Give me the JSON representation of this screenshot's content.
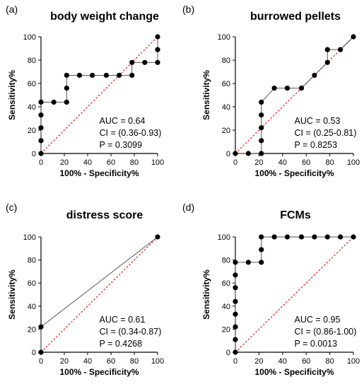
{
  "chart_data": [
    {
      "type": "line",
      "panel": "(a)",
      "title": "body weight change",
      "xlabel": "100% - Specificity%",
      "ylabel": "Sensitivity%",
      "xlim": [
        0,
        100
      ],
      "ylim": [
        0,
        100
      ],
      "xticks": [
        "0",
        "20",
        "40",
        "60",
        "80",
        "100"
      ],
      "yticks": [
        "0",
        "20",
        "40",
        "60",
        "80",
        "100"
      ],
      "stats": [
        "AUC = 0.64",
        "CI = (0.36-0.93)",
        "P = 0.3099"
      ],
      "series": [
        {
          "x": [
            0,
            0,
            0,
            0,
            0,
            11,
            22,
            22,
            22,
            33,
            44,
            56,
            67,
            78,
            78,
            89,
            100,
            100,
            100
          ],
          "y": [
            0,
            11,
            22,
            33,
            44,
            44,
            44,
            56,
            67,
            67,
            67,
            67,
            67,
            67,
            78,
            78,
            78,
            89,
            100
          ]
        }
      ],
      "reference_line": true
    },
    {
      "type": "line",
      "panel": "(b)",
      "title": "burrowed pellets",
      "xlabel": "100% - Specificity%",
      "ylabel": "Sensitivity%",
      "xlim": [
        0,
        100
      ],
      "ylim": [
        0,
        100
      ],
      "xticks": [
        "0",
        "20",
        "40",
        "60",
        "80",
        "100"
      ],
      "yticks": [
        "0",
        "20",
        "40",
        "60",
        "80",
        "100"
      ],
      "stats": [
        "AUC = 0.53",
        "CI = (0.25-0.81)",
        "P = 0.8253"
      ],
      "series": [
        {
          "x": [
            0,
            11,
            22,
            22,
            22,
            22,
            22,
            33,
            44,
            56,
            67,
            78,
            78,
            89,
            100
          ],
          "y": [
            0,
            0,
            0,
            11,
            22,
            33,
            44,
            56,
            56,
            56,
            67,
            78,
            89,
            89,
            100
          ]
        }
      ],
      "reference_line": true
    },
    {
      "type": "line",
      "panel": "(c)",
      "title": "distress score",
      "xlabel": "100% - Specificity%",
      "ylabel": "Sensitivity%",
      "xlim": [
        0,
        100
      ],
      "ylim": [
        0,
        100
      ],
      "xticks": [
        "0",
        "20",
        "40",
        "60",
        "80",
        "100"
      ],
      "yticks": [
        "0",
        "20",
        "40",
        "60",
        "80",
        "100"
      ],
      "stats": [
        "AUC = 0.61",
        "CI = (0.34-0.87)",
        "P = 0.4268"
      ],
      "series": [
        {
          "x": [
            0,
            0,
            100
          ],
          "y": [
            0,
            22,
            100
          ]
        }
      ],
      "reference_line": true
    },
    {
      "type": "line",
      "panel": "(d)",
      "title": "FCMs",
      "xlabel": "100% - Specificity%",
      "ylabel": "Sensitivity%",
      "xlim": [
        0,
        100
      ],
      "ylim": [
        0,
        100
      ],
      "xticks": [
        "0",
        "20",
        "40",
        "60",
        "80",
        "100"
      ],
      "yticks": [
        "0",
        "20",
        "40",
        "60",
        "80",
        "100"
      ],
      "stats": [
        "AUC = 0.95",
        "CI = (0.86-1.00)",
        "P = 0.0013"
      ],
      "series": [
        {
          "x": [
            0,
            0,
            0,
            0,
            0,
            0,
            0,
            0,
            11,
            22,
            22,
            22,
            33,
            44,
            56,
            67,
            78,
            89,
            100
          ],
          "y": [
            0,
            11,
            22,
            33,
            44,
            56,
            67,
            78,
            78,
            78,
            89,
            100,
            100,
            100,
            100,
            100,
            100,
            100,
            100
          ]
        }
      ],
      "reference_line": true
    }
  ],
  "colors": {
    "points": "#000000",
    "curve": "#555555",
    "reference": "#e8201a",
    "axis": "#000000"
  }
}
